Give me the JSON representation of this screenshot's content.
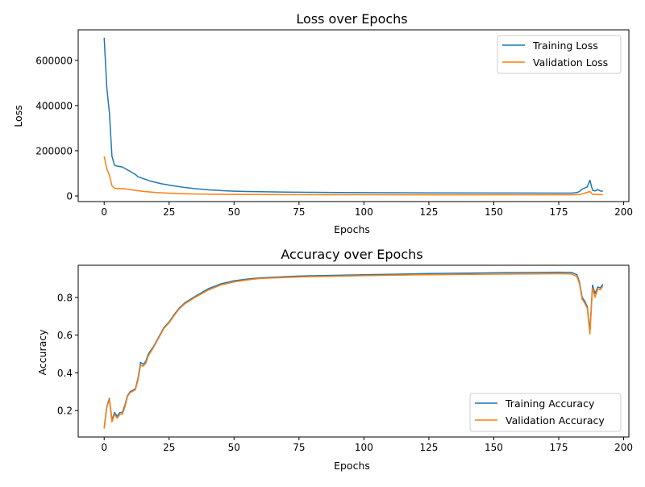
{
  "chart_data": [
    {
      "type": "line",
      "title": "Loss over Epochs",
      "xlabel": "Epochs",
      "ylabel": "Loss",
      "xlim": [
        -10,
        202
      ],
      "ylim": [
        -25000,
        735000
      ],
      "xticks": [
        0,
        25,
        50,
        75,
        100,
        125,
        150,
        175,
        200
      ],
      "yticks": [
        0,
        200000,
        400000,
        600000
      ],
      "legend": "top-right",
      "grid": false,
      "series": [
        {
          "name": "Training Loss",
          "color": "#1f77b4",
          "points": [
            [
              0,
              700000
            ],
            [
              1,
              480000
            ],
            [
              2,
              370000
            ],
            [
              3,
              175000
            ],
            [
              4,
              135000
            ],
            [
              5,
              132000
            ],
            [
              7,
              128000
            ],
            [
              9,
              115000
            ],
            [
              12,
              95000
            ],
            [
              13,
              85000
            ],
            [
              15,
              77000
            ],
            [
              18,
              65000
            ],
            [
              22,
              54000
            ],
            [
              26,
              46000
            ],
            [
              30,
              39000
            ],
            [
              35,
              32000
            ],
            [
              40,
              27000
            ],
            [
              45,
              23500
            ],
            [
              50,
              21000
            ],
            [
              55,
              19500
            ],
            [
              60,
              18500
            ],
            [
              70,
              17000
            ],
            [
              80,
              16000
            ],
            [
              90,
              15000
            ],
            [
              100,
              14500
            ],
            [
              125,
              13500
            ],
            [
              150,
              13000
            ],
            [
              175,
              12500
            ],
            [
              180,
              12500
            ],
            [
              182,
              15000
            ],
            [
              183,
              20000
            ],
            [
              184,
              30000
            ],
            [
              186,
              40000
            ],
            [
              187,
              70000
            ],
            [
              188,
              25000
            ],
            [
              189,
              22000
            ],
            [
              190,
              28000
            ],
            [
              191,
              22000
            ],
            [
              192,
              21000
            ]
          ]
        },
        {
          "name": "Validation Loss",
          "color": "#ff7f0e",
          "points": [
            [
              0,
              175000
            ],
            [
              1,
              120000
            ],
            [
              2,
              92000
            ],
            [
              3,
              45000
            ],
            [
              4,
              34000
            ],
            [
              5,
              33000
            ],
            [
              8,
              31000
            ],
            [
              12,
              25000
            ],
            [
              15,
              20000
            ],
            [
              20,
              15000
            ],
            [
              25,
              12000
            ],
            [
              30,
              10000
            ],
            [
              40,
              7500
            ],
            [
              50,
              6500
            ],
            [
              75,
              5500
            ],
            [
              100,
              5200
            ],
            [
              125,
              5000
            ],
            [
              150,
              5000
            ],
            [
              180,
              5000
            ],
            [
              183,
              6000
            ],
            [
              185,
              12000
            ],
            [
              187,
              20000
            ],
            [
              188,
              7000
            ],
            [
              190,
              6000
            ],
            [
              192,
              5500
            ]
          ]
        }
      ]
    },
    {
      "type": "line",
      "title": "Accuracy over Epochs",
      "xlabel": "Epochs",
      "ylabel": "Accuracy",
      "xlim": [
        -10,
        202
      ],
      "ylim": [
        0.06,
        0.97
      ],
      "xticks": [
        0,
        25,
        50,
        75,
        100,
        125,
        150,
        175,
        200
      ],
      "yticks": [
        0.2,
        0.4,
        0.6,
        0.8
      ],
      "legend": "bottom-right",
      "grid": false,
      "series": [
        {
          "name": "Training Accuracy",
          "color": "#1f77b4",
          "points": [
            [
              0,
              0.11
            ],
            [
              1,
              0.22
            ],
            [
              2,
              0.265
            ],
            [
              3,
              0.15
            ],
            [
              4,
              0.19
            ],
            [
              5,
              0.17
            ],
            [
              6,
              0.19
            ],
            [
              7,
              0.19
            ],
            [
              8,
              0.23
            ],
            [
              9,
              0.28
            ],
            [
              10,
              0.3
            ],
            [
              12,
              0.315
            ],
            [
              13,
              0.37
            ],
            [
              14,
              0.455
            ],
            [
              15,
              0.445
            ],
            [
              16,
              0.46
            ],
            [
              17,
              0.5
            ],
            [
              19,
              0.54
            ],
            [
              21,
              0.59
            ],
            [
              23,
              0.64
            ],
            [
              25,
              0.67
            ],
            [
              27,
              0.71
            ],
            [
              29,
              0.745
            ],
            [
              31,
              0.77
            ],
            [
              35,
              0.805
            ],
            [
              40,
              0.845
            ],
            [
              45,
              0.872
            ],
            [
              50,
              0.888
            ],
            [
              55,
              0.897
            ],
            [
              60,
              0.903
            ],
            [
              75,
              0.913
            ],
            [
              100,
              0.92
            ],
            [
              125,
              0.926
            ],
            [
              150,
              0.93
            ],
            [
              175,
              0.933
            ],
            [
              180,
              0.932
            ],
            [
              182,
              0.92
            ],
            [
              183,
              0.88
            ],
            [
              184,
              0.8
            ],
            [
              185,
              0.78
            ],
            [
              186,
              0.75
            ],
            [
              187,
              0.62
            ],
            [
              188,
              0.865
            ],
            [
              189,
              0.82
            ],
            [
              190,
              0.855
            ],
            [
              191,
              0.85
            ],
            [
              192,
              0.87
            ]
          ]
        },
        {
          "name": "Validation Accuracy",
          "color": "#ff7f0e",
          "points": [
            [
              0,
              0.105
            ],
            [
              1,
              0.215
            ],
            [
              2,
              0.26
            ],
            [
              3,
              0.14
            ],
            [
              4,
              0.18
            ],
            [
              5,
              0.16
            ],
            [
              6,
              0.18
            ],
            [
              7,
              0.18
            ],
            [
              8,
              0.22
            ],
            [
              9,
              0.275
            ],
            [
              10,
              0.295
            ],
            [
              12,
              0.31
            ],
            [
              13,
              0.36
            ],
            [
              14,
              0.44
            ],
            [
              15,
              0.435
            ],
            [
              16,
              0.45
            ],
            [
              17,
              0.49
            ],
            [
              19,
              0.535
            ],
            [
              21,
              0.585
            ],
            [
              23,
              0.635
            ],
            [
              25,
              0.665
            ],
            [
              27,
              0.705
            ],
            [
              29,
              0.74
            ],
            [
              31,
              0.765
            ],
            [
              35,
              0.8
            ],
            [
              40,
              0.838
            ],
            [
              45,
              0.866
            ],
            [
              50,
              0.882
            ],
            [
              55,
              0.892
            ],
            [
              60,
              0.9
            ],
            [
              75,
              0.908
            ],
            [
              100,
              0.915
            ],
            [
              125,
              0.92
            ],
            [
              150,
              0.923
            ],
            [
              175,
              0.925
            ],
            [
              180,
              0.924
            ],
            [
              182,
              0.91
            ],
            [
              183,
              0.87
            ],
            [
              184,
              0.79
            ],
            [
              185,
              0.77
            ],
            [
              186,
              0.74
            ],
            [
              187,
              0.605
            ],
            [
              188,
              0.85
            ],
            [
              189,
              0.8
            ],
            [
              190,
              0.845
            ],
            [
              191,
              0.84
            ],
            [
              192,
              0.86
            ]
          ]
        }
      ]
    }
  ]
}
